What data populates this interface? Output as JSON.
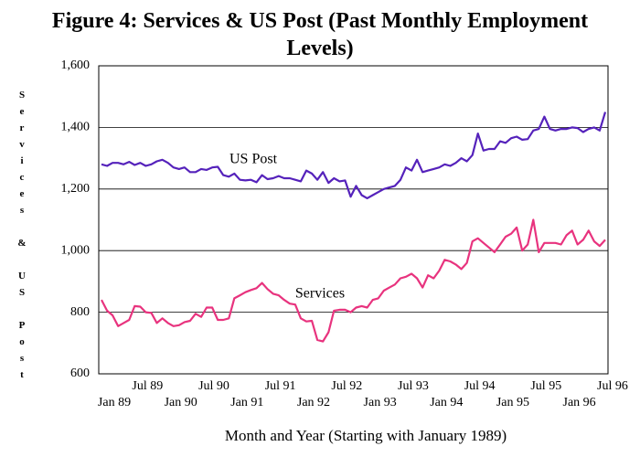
{
  "chart_data": {
    "type": "line",
    "title": "Figure 4:  Services & US Post (Past Monthly Employment Levels)",
    "x_label": "Month and Year (Starting with January 1989)",
    "y_label": "Services & US Post",
    "categories": [
      "Jan 89",
      null,
      null,
      null,
      null,
      null,
      "Jul 89",
      null,
      null,
      null,
      null,
      null,
      "Jan 90",
      null,
      null,
      null,
      null,
      null,
      "Jul 90",
      null,
      null,
      null,
      null,
      null,
      "Jan 91",
      null,
      null,
      null,
      null,
      null,
      "Jul 91",
      null,
      null,
      null,
      null,
      null,
      "Jan 92",
      null,
      null,
      null,
      null,
      null,
      "Jul 92",
      null,
      null,
      null,
      null,
      null,
      "Jan 93",
      null,
      null,
      null,
      null,
      null,
      "Jul 93",
      null,
      null,
      null,
      null,
      null,
      "Jan 94",
      null,
      null,
      null,
      null,
      null,
      "Jul 94",
      null,
      null,
      null,
      null,
      null,
      "Jan 95",
      null,
      null,
      null,
      null,
      null,
      "Jul 95",
      null,
      null,
      null,
      null,
      null,
      "Jan 96",
      null,
      null,
      null,
      null,
      null,
      "Jul 96",
      null
    ],
    "series": [
      {
        "name": "US Post",
        "color": "#5522bb",
        "values": [
          1280,
          1275,
          1285,
          1285,
          1280,
          1288,
          1278,
          1285,
          1275,
          1280,
          1290,
          1295,
          1285,
          1270,
          1265,
          1270,
          1255,
          1255,
          1265,
          1262,
          1270,
          1272,
          1245,
          1240,
          1250,
          1230,
          1228,
          1230,
          1222,
          1245,
          1232,
          1235,
          1242,
          1235,
          1235,
          1230,
          1225,
          1260,
          1250,
          1230,
          1255,
          1220,
          1235,
          1225,
          1228,
          1175,
          1210,
          1180,
          1170,
          1180,
          1190,
          1200,
          1205,
          1210,
          1230,
          1270,
          1260,
          1295,
          1255,
          1260,
          1265,
          1270,
          1280,
          1275,
          1285,
          1300,
          1290,
          1310,
          1380,
          1325,
          1330,
          1330,
          1355,
          1350,
          1365,
          1370,
          1360,
          1362,
          1390,
          1395,
          1435,
          1395,
          1390,
          1395,
          1395,
          1400,
          1398,
          1385,
          1395,
          1400,
          1390,
          1450
        ]
      },
      {
        "name": "Services",
        "color": "#e8337e",
        "values": [
          840,
          805,
          790,
          755,
          765,
          775,
          820,
          818,
          800,
          798,
          765,
          780,
          765,
          755,
          758,
          768,
          772,
          795,
          785,
          815,
          815,
          775,
          775,
          780,
          845,
          855,
          865,
          872,
          878,
          895,
          875,
          860,
          855,
          840,
          828,
          825,
          780,
          770,
          772,
          710,
          705,
          735,
          805,
          808,
          808,
          800,
          815,
          820,
          815,
          840,
          845,
          870,
          880,
          890,
          910,
          915,
          925,
          910,
          880,
          920,
          910,
          935,
          970,
          965,
          955,
          940,
          960,
          1030,
          1040,
          1025,
          1010,
          995,
          1020,
          1045,
          1055,
          1075,
          1000,
          1020,
          1100,
          995,
          1025,
          1025,
          1025,
          1020,
          1050,
          1065,
          1020,
          1035,
          1065,
          1030,
          1015,
          1035
        ]
      }
    ],
    "ylim": [
      600,
      1600
    ],
    "yticks": [
      600,
      800,
      {
        "value": 1000,
        "label": "1,000"
      },
      {
        "value": 1200,
        "label": "1,200"
      },
      {
        "value": 1400,
        "label": "1,400"
      },
      {
        "value": 1600,
        "label": "1,600"
      }
    ],
    "grid": true,
    "annotations": [
      "US Post",
      "Services"
    ]
  }
}
